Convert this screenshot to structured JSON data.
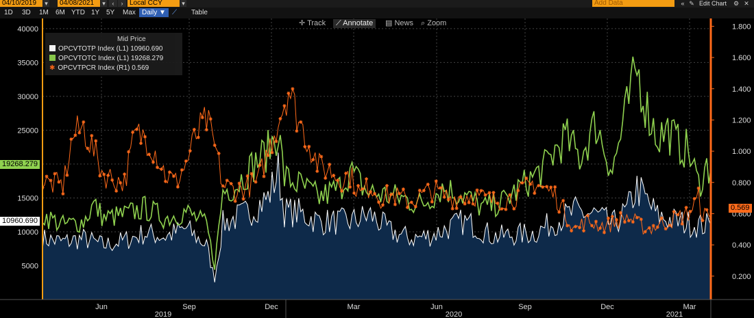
{
  "toolbar": {
    "start_date": "04/10/2019",
    "end_date": "04/08/2021",
    "currency": "Local CCY",
    "add_data_placeholder": "Add Data",
    "edit_chart": "Edit Chart",
    "collapse": "«",
    "edit_icon": "pencil-icon"
  },
  "range_buttons": [
    "1D",
    "3D",
    "1M",
    "6M",
    "YTD",
    "1Y",
    "5Y",
    "Max"
  ],
  "frequency": "Daily ▼",
  "table_label": "Table",
  "tools": [
    "Track",
    "Annotate",
    "News",
    "Zoom"
  ],
  "colors": {
    "white_series": "#ffffff",
    "green_series": "#8fd14f",
    "orange_series": "#ff6a1a",
    "area_fill": "#0e2a4a",
    "left_axis": "#f39c12",
    "right_axis": "#ff6a1a"
  },
  "chart_data": {
    "type": "line",
    "title": "Mid Price",
    "left_axis": {
      "ticks": [
        5000,
        10000,
        15000,
        20000,
        25000,
        30000,
        35000,
        40000
      ],
      "ylim": [
        0,
        41500
      ]
    },
    "right_axis": {
      "ticks": [
        "0.200",
        "0.400",
        "0.600",
        "0.800",
        "1.000",
        "1.200",
        "1.400",
        "1.600",
        "1.800"
      ],
      "ylim": [
        0.05,
        1.85
      ]
    },
    "x_months": [
      "Jun",
      "Sep",
      "Dec",
      "Mar",
      "Jun",
      "Sep",
      "Dec",
      "Mar"
    ],
    "x_years": [
      "2019",
      "2020",
      "2021"
    ],
    "series": [
      {
        "name": "OPCVTOTP Index  (L1) 10960.690",
        "axis": "left",
        "last": "10960.690",
        "style": "area",
        "anchors": [
          [
            0,
            9000
          ],
          [
            10,
            8500
          ],
          [
            20,
            9000
          ],
          [
            30,
            8000
          ],
          [
            40,
            8700
          ],
          [
            50,
            9800
          ],
          [
            60,
            9300
          ],
          [
            70,
            10500
          ],
          [
            80,
            8000
          ],
          [
            84,
            3000
          ],
          [
            88,
            11200
          ],
          [
            100,
            12800
          ],
          [
            110,
            15000
          ],
          [
            115,
            19000
          ],
          [
            118,
            13000
          ],
          [
            125,
            12800
          ],
          [
            135,
            11500
          ],
          [
            150,
            11500
          ],
          [
            160,
            12500
          ],
          [
            170,
            10000
          ],
          [
            180,
            9000
          ],
          [
            190,
            9500
          ],
          [
            205,
            11500
          ],
          [
            210,
            11000
          ],
          [
            220,
            9300
          ],
          [
            240,
            9800
          ],
          [
            250,
            11500
          ],
          [
            260,
            13000
          ],
          [
            270,
            12500
          ],
          [
            278,
            11000
          ],
          [
            285,
            13000
          ],
          [
            290,
            16500
          ],
          [
            295,
            14500
          ],
          [
            300,
            12300
          ],
          [
            310,
            11500
          ],
          [
            320,
            11000
          ],
          [
            326,
            10960
          ]
        ]
      },
      {
        "name": "OPCVTOTC Index  (L1) 19268.279",
        "axis": "left",
        "last": "19268.279",
        "style": "line",
        "anchors": [
          [
            0,
            12500
          ],
          [
            10,
            11000
          ],
          [
            20,
            11500
          ],
          [
            25,
            14000
          ],
          [
            30,
            12000
          ],
          [
            40,
            12500
          ],
          [
            50,
            13500
          ],
          [
            60,
            12000
          ],
          [
            70,
            13000
          ],
          [
            80,
            11000
          ],
          [
            84,
            5000
          ],
          [
            88,
            16000
          ],
          [
            95,
            17000
          ],
          [
            100,
            19000
          ],
          [
            110,
            22000
          ],
          [
            115,
            25000
          ],
          [
            118,
            18000
          ],
          [
            125,
            17000
          ],
          [
            135,
            15000
          ],
          [
            145,
            16500
          ],
          [
            150,
            19000
          ],
          [
            158,
            16000
          ],
          [
            165,
            15500
          ],
          [
            175,
            15000
          ],
          [
            185,
            14000
          ],
          [
            195,
            16500
          ],
          [
            205,
            15500
          ],
          [
            215,
            13500
          ],
          [
            225,
            14500
          ],
          [
            235,
            17000
          ],
          [
            245,
            19500
          ],
          [
            250,
            22000
          ],
          [
            255,
            24000
          ],
          [
            262,
            21000
          ],
          [
            270,
            26000
          ],
          [
            278,
            19000
          ],
          [
            285,
            28000
          ],
          [
            290,
            34000
          ],
          [
            295,
            28000
          ],
          [
            300,
            24000
          ],
          [
            305,
            25000
          ],
          [
            310,
            23000
          ],
          [
            315,
            22000
          ],
          [
            320,
            17000
          ],
          [
            324,
            19500
          ],
          [
            326,
            19268
          ]
        ]
      },
      {
        "name": "OPCVTPCR Index  (R1) 0.569",
        "axis": "right",
        "last": "0.569",
        "style": "marker-line",
        "anchors": [
          [
            0,
            0.8
          ],
          [
            10,
            0.78
          ],
          [
            15,
            1.1
          ],
          [
            20,
            1.15
          ],
          [
            25,
            1.0
          ],
          [
            30,
            0.85
          ],
          [
            35,
            0.82
          ],
          [
            40,
            0.8
          ],
          [
            45,
            1.1
          ],
          [
            50,
            1.1
          ],
          [
            55,
            1.0
          ],
          [
            60,
            0.85
          ],
          [
            65,
            0.8
          ],
          [
            70,
            0.92
          ],
          [
            75,
            1.1
          ],
          [
            80,
            1.2
          ],
          [
            85,
            0.98
          ],
          [
            88,
            0.78
          ],
          [
            95,
            0.75
          ],
          [
            105,
            0.8
          ],
          [
            110,
            1.0
          ],
          [
            115,
            1.2
          ],
          [
            120,
            1.4
          ],
          [
            125,
            1.2
          ],
          [
            130,
            1.05
          ],
          [
            135,
            0.9
          ],
          [
            140,
            0.88
          ],
          [
            145,
            0.82
          ],
          [
            150,
            0.85
          ],
          [
            155,
            0.72
          ],
          [
            160,
            0.78
          ],
          [
            165,
            0.7
          ],
          [
            170,
            0.72
          ],
          [
            180,
            0.68
          ],
          [
            190,
            0.75
          ],
          [
            200,
            0.7
          ],
          [
            210,
            0.72
          ],
          [
            220,
            0.68
          ],
          [
            230,
            0.7
          ],
          [
            240,
            0.8
          ],
          [
            250,
            0.72
          ],
          [
            255,
            0.6
          ],
          [
            260,
            0.5
          ],
          [
            265,
            0.55
          ],
          [
            275,
            0.52
          ],
          [
            285,
            0.58
          ],
          [
            295,
            0.5
          ],
          [
            305,
            0.55
          ],
          [
            315,
            0.6
          ],
          [
            320,
            0.7
          ],
          [
            322,
            0.6
          ],
          [
            326,
            0.569
          ]
        ]
      }
    ]
  }
}
